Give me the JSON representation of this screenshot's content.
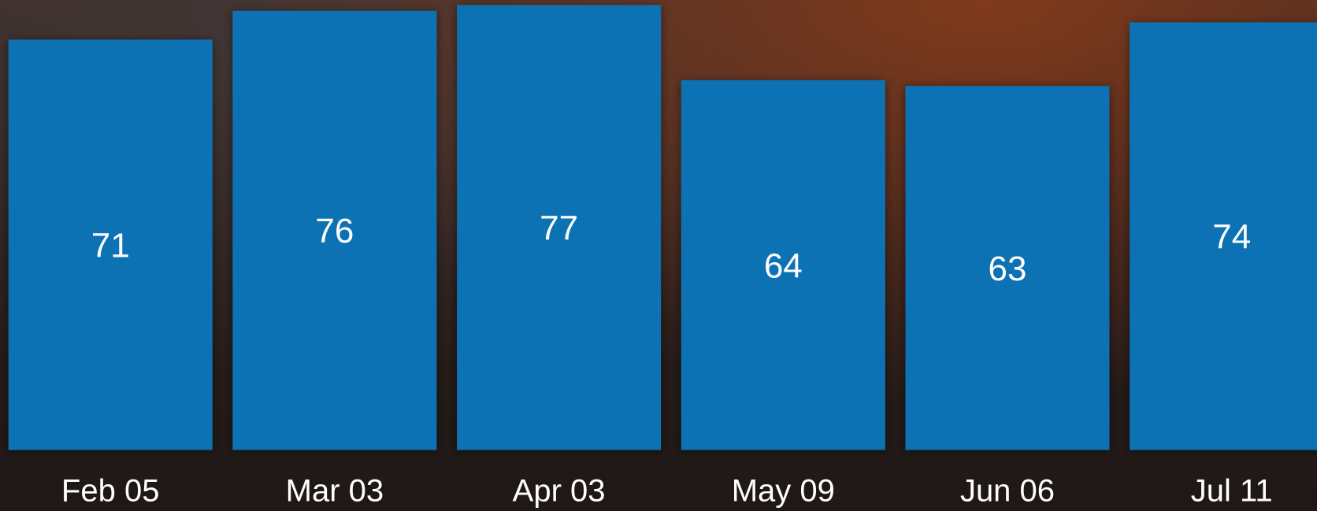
{
  "chart_data": {
    "type": "bar",
    "categories": [
      "Feb 05",
      "Mar 03",
      "Apr 03",
      "May 09",
      "Jun 06",
      "Jul 11"
    ],
    "values": [
      71,
      76,
      77,
      64,
      63,
      74
    ],
    "color": "#1172b4"
  }
}
